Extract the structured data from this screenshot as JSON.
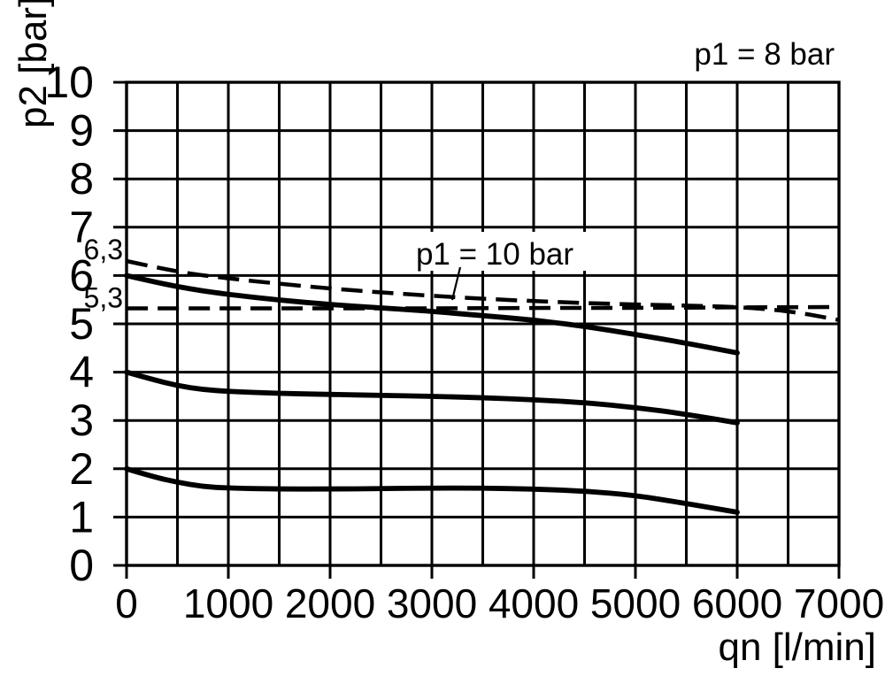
{
  "colors": {
    "ink": "#000000",
    "background": "#ffffff"
  },
  "chart_data": {
    "type": "line",
    "title": "p1 = 8 bar",
    "xlabel": "qn [l/min]",
    "ylabel": "p2 [bar]",
    "xlim": [
      0,
      7000
    ],
    "ylim": [
      0,
      10
    ],
    "grid": {
      "on": true,
      "x_step": 500,
      "y_step": 1
    },
    "x_ticks": [
      {
        "value": 0,
        "label": "0"
      },
      {
        "value": 1000,
        "label": "1000"
      },
      {
        "value": 2000,
        "label": "2000"
      },
      {
        "value": 3000,
        "label": "3000"
      },
      {
        "value": 4000,
        "label": "4000"
      },
      {
        "value": 5000,
        "label": "5000"
      },
      {
        "value": 6000,
        "label": "6000"
      },
      {
        "value": 7000,
        "label": "7000"
      }
    ],
    "y_ticks": [
      {
        "value": 0,
        "label": "0"
      },
      {
        "value": 1,
        "label": "1"
      },
      {
        "value": 2,
        "label": "2"
      },
      {
        "value": 3,
        "label": "3"
      },
      {
        "value": 4,
        "label": "4"
      },
      {
        "value": 5,
        "label": "5"
      },
      {
        "value": 6,
        "label": "6"
      },
      {
        "value": 7,
        "label": "7"
      },
      {
        "value": 8,
        "label": "8"
      },
      {
        "value": 9,
        "label": "9"
      },
      {
        "value": 10,
        "label": "10"
      }
    ],
    "extra_y_labels": [
      {
        "value": 6.3,
        "label": "6,3"
      },
      {
        "value": 5.3,
        "label": "5,3"
      }
    ],
    "annotations": [
      {
        "text": "p1 = 10 bar",
        "points_to": "dashed-curve-set-6.3"
      }
    ],
    "series": [
      {
        "name": "p1-8bar-set-6bar",
        "style": "solid",
        "points": [
          [
            0,
            6.0
          ],
          [
            250,
            5.88
          ],
          [
            500,
            5.77
          ],
          [
            750,
            5.68
          ],
          [
            1000,
            5.61
          ],
          [
            1500,
            5.49
          ],
          [
            2000,
            5.4
          ],
          [
            2500,
            5.33
          ],
          [
            3000,
            5.26
          ],
          [
            3500,
            5.17
          ],
          [
            4000,
            5.08
          ],
          [
            4500,
            4.95
          ],
          [
            5000,
            4.78
          ],
          [
            5500,
            4.6
          ],
          [
            6000,
            4.4
          ]
        ]
      },
      {
        "name": "p1-8bar-set-4bar",
        "style": "solid",
        "points": [
          [
            0,
            4.0
          ],
          [
            250,
            3.85
          ],
          [
            500,
            3.72
          ],
          [
            750,
            3.64
          ],
          [
            1000,
            3.6
          ],
          [
            1500,
            3.56
          ],
          [
            2000,
            3.54
          ],
          [
            2500,
            3.52
          ],
          [
            3000,
            3.5
          ],
          [
            3500,
            3.47
          ],
          [
            4000,
            3.43
          ],
          [
            4500,
            3.37
          ],
          [
            5000,
            3.27
          ],
          [
            5500,
            3.13
          ],
          [
            6000,
            2.95
          ]
        ]
      },
      {
        "name": "p1-8bar-set-2bar",
        "style": "solid",
        "points": [
          [
            0,
            2.0
          ],
          [
            250,
            1.84
          ],
          [
            500,
            1.72
          ],
          [
            750,
            1.63
          ],
          [
            1000,
            1.6
          ],
          [
            1500,
            1.58
          ],
          [
            2000,
            1.58
          ],
          [
            2500,
            1.59
          ],
          [
            3000,
            1.6
          ],
          [
            3500,
            1.6
          ],
          [
            4000,
            1.58
          ],
          [
            4500,
            1.54
          ],
          [
            5000,
            1.45
          ],
          [
            5500,
            1.28
          ],
          [
            6000,
            1.1
          ]
        ]
      },
      {
        "name": "p1-10bar-set-6.3bar",
        "style": "dashed",
        "points": [
          [
            0,
            6.3
          ],
          [
            500,
            6.07
          ],
          [
            1000,
            5.94
          ],
          [
            1500,
            5.83
          ],
          [
            2000,
            5.73
          ],
          [
            2500,
            5.65
          ],
          [
            3000,
            5.58
          ],
          [
            3500,
            5.52
          ],
          [
            4000,
            5.47
          ],
          [
            4500,
            5.43
          ],
          [
            5000,
            5.4
          ],
          [
            5500,
            5.38
          ],
          [
            6000,
            5.35
          ],
          [
            6500,
            5.27
          ],
          [
            7000,
            5.08
          ]
        ]
      },
      {
        "name": "p1-10bar-set-5.3bar",
        "style": "dashed",
        "points": [
          [
            0,
            5.32
          ],
          [
            1000,
            5.32
          ],
          [
            2000,
            5.32
          ],
          [
            3000,
            5.32
          ],
          [
            4000,
            5.33
          ],
          [
            5000,
            5.33
          ],
          [
            6000,
            5.34
          ],
          [
            7000,
            5.35
          ]
        ]
      }
    ]
  }
}
